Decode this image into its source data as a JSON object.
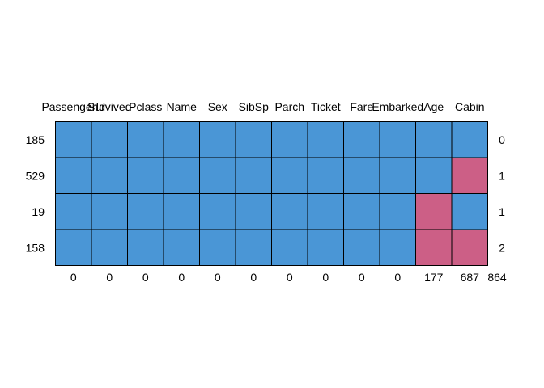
{
  "chart_data": {
    "type": "heatmap",
    "title": "",
    "columns": [
      "PassengerId",
      "Survived",
      "Pclass",
      "Name",
      "Sex",
      "SibSp",
      "Parch",
      "Ticket",
      "Fare",
      "Embarked",
      "Age",
      "Cabin"
    ],
    "row_labels": [
      "185",
      "529",
      "19",
      "158"
    ],
    "row_missing_counts": [
      "0",
      "1",
      "1",
      "2"
    ],
    "column_missing_counts": [
      "0",
      "0",
      "0",
      "0",
      "0",
      "0",
      "0",
      "0",
      "0",
      "0",
      "177",
      "687"
    ],
    "total_missing": "864",
    "cells": [
      [
        0,
        0,
        0,
        0,
        0,
        0,
        0,
        0,
        0,
        0,
        0,
        0
      ],
      [
        0,
        0,
        0,
        0,
        0,
        0,
        0,
        0,
        0,
        0,
        0,
        1
      ],
      [
        0,
        0,
        0,
        0,
        0,
        0,
        0,
        0,
        0,
        0,
        1,
        0
      ],
      [
        0,
        0,
        0,
        0,
        0,
        0,
        0,
        0,
        0,
        0,
        1,
        1
      ]
    ],
    "colors": {
      "observed": "#4a96d6",
      "missing": "#cc5f86",
      "border": "#000000"
    }
  }
}
